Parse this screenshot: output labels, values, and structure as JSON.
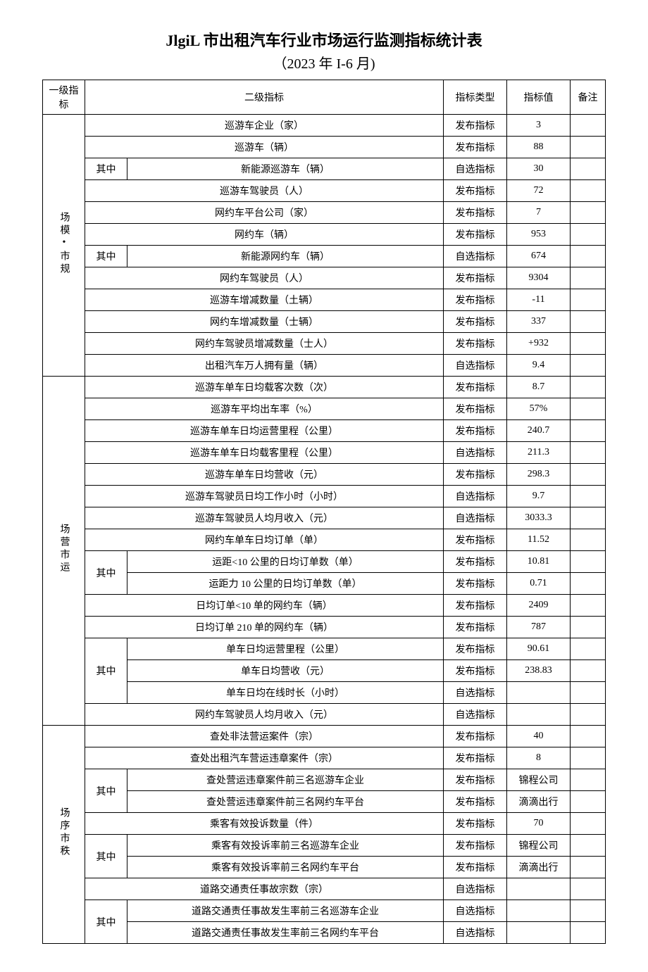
{
  "title": "JlgiL 市出租汽车行业市场运行监测指标统计表",
  "subtitle": "（2023 年 I-6 月)",
  "headers": {
    "l1": "一级指标",
    "l2": "二级指标",
    "type": "指标类型",
    "value": "指标值",
    "note": "备注"
  },
  "sub_label": "其中",
  "sections": [
    {
      "name": "场模•市规",
      "rows": [
        {
          "sub": null,
          "label": "巡游车企业（家）",
          "type": "发布指标",
          "value": "3"
        },
        {
          "sub": null,
          "label": "巡游车（辆）",
          "type": "发布指标",
          "value": "88"
        },
        {
          "sub": "其中",
          "label": "新能源巡游车（辆）",
          "type": "自选指标",
          "value": "30"
        },
        {
          "sub": null,
          "label": "巡游车驾驶员（人）",
          "type": "发布指标",
          "value": "72"
        },
        {
          "sub": null,
          "label": "网约车平台公司（家）",
          "type": "发布指标",
          "value": "7"
        },
        {
          "sub": null,
          "label": "网约车（辆）",
          "type": "发布指标",
          "value": "953"
        },
        {
          "sub": "其中",
          "label": "新能源网约车（辆）",
          "type": "自选指标",
          "value": "674"
        },
        {
          "sub": null,
          "label": "网约车驾驶员（人）",
          "type": "发布指标",
          "value": "9304"
        },
        {
          "sub": null,
          "label": "巡游车增减数量（土辆）",
          "type": "发布指标",
          "value": "-11"
        },
        {
          "sub": null,
          "label": "网约车增减数量（士辆）",
          "type": "发布指标",
          "value": "337"
        },
        {
          "sub": null,
          "label": "网约车驾驶员增减数量（士人）",
          "type": "发布指标",
          "value": "+932"
        },
        {
          "sub": null,
          "label": "出租汽车万人拥有量（辆）",
          "type": "自选指标",
          "value": "9.4"
        }
      ]
    },
    {
      "name": "场营市运",
      "rows": [
        {
          "sub": null,
          "label": "巡游车单车日均载客次数（次）",
          "type": "发布指标",
          "value": "8.7"
        },
        {
          "sub": null,
          "label": "巡游车平均出车率（%）",
          "type": "发布指标",
          "value": "57%"
        },
        {
          "sub": null,
          "label": "巡游车单车日均运营里程（公里）",
          "type": "发布指标",
          "value": "240.7"
        },
        {
          "sub": null,
          "label": "巡游车单车日均载客里程（公里）",
          "type": "自选指标",
          "value": "211.3"
        },
        {
          "sub": null,
          "label": "巡游车单车日均营收（元）",
          "type": "发布指标",
          "value": "298.3"
        },
        {
          "sub": null,
          "label": "巡游车驾驶员日均工作小时（小时）",
          "type": "自选指标",
          "value": "9.7"
        },
        {
          "sub": null,
          "label": "巡游车驾驶员人均月收入（元）",
          "type": "自选指标",
          "value": "3033.3"
        },
        {
          "sub": null,
          "label": "网约车单车日均订单（单）",
          "type": "发布指标",
          "value": "11.52"
        },
        {
          "sub": "其中",
          "subspan": 2,
          "label": "运距<10 公里的日均订单数（单）",
          "type": "发布指标",
          "value": "10.81"
        },
        {
          "sub": "cont",
          "label": "运距力 10 公里的日均订单数（单）",
          "type": "发布指标",
          "value": "0.71"
        },
        {
          "sub": null,
          "label": "日均订单<10 单的网约车（辆）",
          "type": "发布指标",
          "value": "2409"
        },
        {
          "sub": null,
          "label": "日均订单 210 单的网约车（辆）",
          "type": "发布指标",
          "value": "787"
        },
        {
          "sub": "其中",
          "subspan": 3,
          "label": "单车日均运营里程（公里）",
          "type": "发布指标",
          "value": "90.61"
        },
        {
          "sub": "cont",
          "label": "单车日均营收（元）",
          "type": "发布指标",
          "value": "238.83"
        },
        {
          "sub": "cont",
          "label": "单车日均在线时长（小时）",
          "type": "自选指标",
          "value": ""
        },
        {
          "sub": null,
          "label": "网约车驾驶员人均月收入（元）",
          "type": "自选指标",
          "value": ""
        }
      ]
    },
    {
      "name": "场序市秩",
      "rows": [
        {
          "sub": null,
          "label": "查处非法营运案件（宗）",
          "type": "发布指标",
          "value": "40"
        },
        {
          "sub": null,
          "label": "查处出租汽车营运违章案件（宗）",
          "type": "发布指标",
          "value": "8"
        },
        {
          "sub": "其中",
          "subspan": 2,
          "label": "查处营运违章案件前三名巡游车企业",
          "type": "发布指标",
          "value": "锦程公司"
        },
        {
          "sub": "cont",
          "label": "查处营运违章案件前三名网约车平台",
          "type": "发布指标",
          "value": "滴滴出行"
        },
        {
          "sub": null,
          "label": "乘客有效投诉数量（件）",
          "type": "发布指标",
          "value": "70"
        },
        {
          "sub": "其中",
          "subspan": 2,
          "label": "乘客有效投诉率前三名巡游车企业",
          "type": "发布指标",
          "value": "锦程公司"
        },
        {
          "sub": "cont",
          "label": "乘客有效投诉率前三名网约车平台",
          "type": "发布指标",
          "value": "滴滴出行"
        },
        {
          "sub": null,
          "label": "道路交通责任事故宗数（宗）",
          "type": "自选指标",
          "value": ""
        },
        {
          "sub": "其中",
          "subspan": 2,
          "label": "道路交通责任事故发生率前三名巡游车企业",
          "type": "自选指标",
          "value": ""
        },
        {
          "sub": "cont",
          "label": "道路交通责任事故发生率前三名网约车平台",
          "type": "自选指标",
          "value": ""
        }
      ]
    }
  ]
}
